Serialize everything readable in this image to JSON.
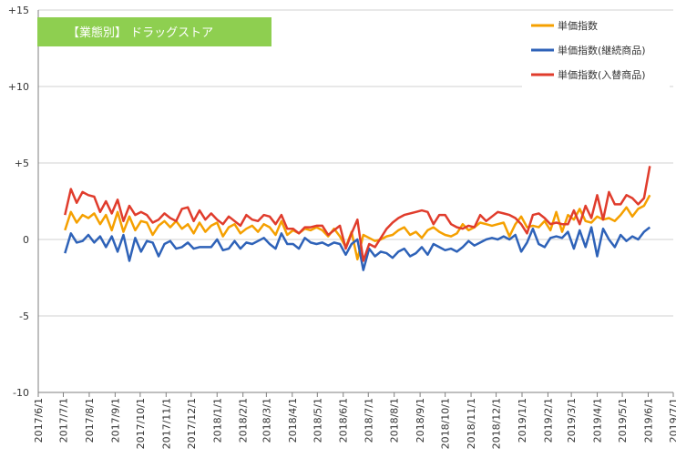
{
  "chart_data": {
    "type": "line",
    "badge": {
      "text": "【業態別】 ドラッグストア",
      "color": "#8ecf50"
    },
    "ylim": [
      -10,
      15
    ],
    "y_ticks": [
      {
        "v": 15,
        "label": "+15"
      },
      {
        "v": 10,
        "label": "+10"
      },
      {
        "v": 5,
        "label": "+5"
      },
      {
        "v": 0,
        "label": "0"
      },
      {
        "v": -5,
        "label": "-5"
      },
      {
        "v": -10,
        "label": "-10"
      }
    ],
    "x_tick_labels": [
      "2017/6/1",
      "2017/7/1",
      "2017/8/1",
      "2017/9/1",
      "2017/10/1",
      "2017/11/1",
      "2017/12/1",
      "2018/1/1",
      "2018/2/1",
      "2018/3/1",
      "2018/4/1",
      "2018/5/1",
      "2018/6/1",
      "2018/7/1",
      "2018/8/1",
      "2018/9/1",
      "2018/10/1",
      "2018/11/1",
      "2018/12/1",
      "2019/1/1",
      "2019/2/1",
      "2019/3/1",
      "2019/4/1",
      "2019/5/1",
      "2019/6/1",
      "2019/7/1"
    ],
    "x_start": "2017-07-03",
    "x_step_days": 7,
    "grid": true,
    "legend_position": "top-right",
    "series": [
      {
        "name": "単価指数",
        "color": "#f5a000",
        "values": [
          0.6,
          1.8,
          1.1,
          1.6,
          1.4,
          1.7,
          1.0,
          1.6,
          0.6,
          1.8,
          0.5,
          1.5,
          0.6,
          1.2,
          1.1,
          0.3,
          0.9,
          1.2,
          0.8,
          1.2,
          0.7,
          1.0,
          0.4,
          1.1,
          0.5,
          0.9,
          1.1,
          0.2,
          0.8,
          1.0,
          0.4,
          0.7,
          0.9,
          0.5,
          1.0,
          0.8,
          0.3,
          1.2,
          0.3,
          0.6,
          0.4,
          0.7,
          0.6,
          0.8,
          0.6,
          0.2,
          0.7,
          0.2,
          -0.5,
          0.5,
          -1.3,
          0.3,
          0.1,
          -0.1,
          0.0,
          0.2,
          0.3,
          0.6,
          0.8,
          0.3,
          0.5,
          0.1,
          0.6,
          0.8,
          0.5,
          0.3,
          0.2,
          0.4,
          1.0,
          0.6,
          0.8,
          1.1,
          1.0,
          0.9,
          1.0,
          1.1,
          0.2,
          1.0,
          1.5,
          0.8,
          0.9,
          0.8,
          1.2,
          0.6,
          1.8,
          0.5,
          1.6,
          1.3,
          2.0,
          1.2,
          1.1,
          1.5,
          1.3,
          1.4,
          1.2,
          1.6,
          2.1,
          1.5,
          2.0,
          2.2,
          2.9
        ]
      },
      {
        "name": "単価指数(継続商品)",
        "color": "#2e62b8",
        "values": [
          -0.9,
          0.4,
          -0.2,
          -0.1,
          0.3,
          -0.2,
          0.2,
          -0.5,
          0.2,
          -0.8,
          0.3,
          -1.4,
          0.1,
          -0.8,
          -0.1,
          -0.2,
          -1.1,
          -0.3,
          -0.1,
          -0.6,
          -0.5,
          -0.2,
          -0.6,
          -0.5,
          -0.5,
          -0.5,
          0.0,
          -0.7,
          -0.6,
          -0.1,
          -0.6,
          -0.2,
          -0.3,
          -0.1,
          0.1,
          -0.3,
          -0.6,
          0.4,
          -0.3,
          -0.3,
          -0.6,
          0.1,
          -0.2,
          -0.3,
          -0.2,
          -0.4,
          -0.2,
          -0.3,
          -1.0,
          -0.3,
          0.0,
          -2.0,
          -0.6,
          -1.1,
          -0.8,
          -0.9,
          -1.2,
          -0.8,
          -0.6,
          -1.1,
          -0.9,
          -0.5,
          -1.0,
          -0.3,
          -0.5,
          -0.7,
          -0.6,
          -0.8,
          -0.5,
          -0.1,
          -0.4,
          -0.2,
          0.0,
          0.1,
          0.0,
          0.2,
          0.0,
          0.3,
          -0.8,
          -0.2,
          0.7,
          -0.3,
          -0.5,
          0.1,
          0.2,
          0.1,
          0.5,
          -0.6,
          0.6,
          -0.5,
          0.8,
          -1.1,
          0.7,
          0.0,
          -0.5,
          0.3,
          -0.1,
          0.2,
          0.0,
          0.5,
          0.8
        ]
      },
      {
        "name": "単価指数(入替商品)",
        "color": "#e03c2c",
        "values": [
          1.6,
          3.3,
          2.4,
          3.1,
          2.9,
          2.8,
          1.8,
          2.5,
          1.7,
          2.6,
          1.2,
          2.2,
          1.6,
          1.8,
          1.6,
          1.1,
          1.3,
          1.7,
          1.4,
          1.2,
          2.0,
          2.1,
          1.2,
          1.9,
          1.3,
          1.7,
          1.3,
          1.0,
          1.5,
          1.2,
          0.9,
          1.6,
          1.3,
          1.2,
          1.6,
          1.5,
          1.0,
          1.6,
          0.7,
          0.7,
          0.4,
          0.8,
          0.8,
          0.9,
          0.9,
          0.3,
          0.6,
          0.9,
          -0.6,
          0.4,
          1.3,
          -1.4,
          -0.3,
          -0.5,
          0.1,
          0.7,
          1.1,
          1.4,
          1.6,
          1.7,
          1.8,
          1.9,
          1.8,
          1.0,
          1.6,
          1.6,
          1.0,
          0.8,
          0.7,
          0.9,
          0.8,
          1.6,
          1.2,
          1.5,
          1.8,
          1.7,
          1.6,
          1.4,
          1.0,
          0.4,
          1.6,
          1.7,
          1.4,
          1.0,
          1.1,
          1.0,
          1.0,
          1.9,
          1.0,
          2.2,
          1.4,
          2.9,
          1.3,
          3.1,
          2.3,
          2.3,
          2.9,
          2.7,
          2.3,
          2.7,
          4.8
        ]
      }
    ]
  }
}
